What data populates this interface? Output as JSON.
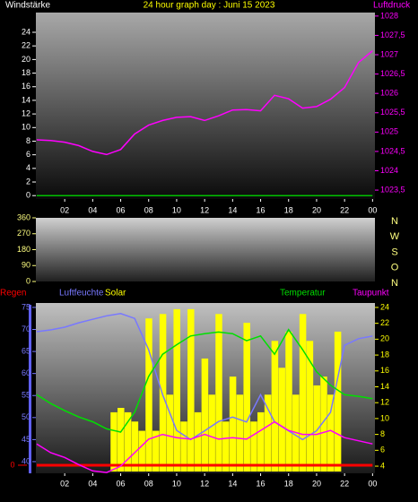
{
  "chart_data": [
    {
      "type": "line",
      "title": "24 hour graph day : Juni 15 2023",
      "y_label": "Windstärke",
      "y2_label": "Luftdruck",
      "x": [
        0,
        1,
        2,
        3,
        4,
        5,
        6,
        7,
        8,
        9,
        10,
        11,
        12,
        13,
        14,
        15,
        16,
        17,
        18,
        19,
        20,
        21,
        22,
        23,
        24
      ],
      "xlim": [
        -0.06,
        24.17
      ],
      "xticks": [
        {
          "value": 2,
          "label": "02"
        },
        {
          "value": 4,
          "label": "04"
        },
        {
          "value": 6,
          "label": "06"
        },
        {
          "value": 8,
          "label": "08"
        },
        10,
        12,
        14,
        16,
        18,
        20,
        22,
        {
          "value": 24,
          "label": "00"
        }
      ],
      "ylim": [
        -0.5,
        26.9
      ],
      "yticks": [
        0,
        2,
        4,
        6,
        8,
        10,
        12,
        14,
        16,
        18,
        20,
        22,
        24
      ],
      "y2lim": [
        1023.27,
        1028.09
      ],
      "y2ticks": [
        {
          "value": 1023.5,
          "label": "1023,5"
        },
        1024,
        {
          "value": 1024.5,
          "label": "1024,5"
        },
        1025,
        {
          "value": 1025.5,
          "label": "1025,5"
        },
        1026,
        {
          "value": 1026.5,
          "label": "1026,5"
        },
        1027,
        {
          "value": 1027.5,
          "label": "1027,5"
        },
        1028
      ],
      "series": [
        {
          "name": "Windstärke",
          "color": "#00c000",
          "values": [
            0,
            0,
            0,
            0,
            0,
            0,
            0,
            0,
            0,
            0,
            0,
            0,
            0,
            0,
            0,
            0,
            0,
            0,
            0,
            0,
            0,
            0,
            0,
            0,
            0
          ]
        },
        {
          "name": "Luftdruck",
          "color": "#ff00ff",
          "axis": "y2",
          "values": [
            1024.8,
            1024.78,
            1024.74,
            1024.65,
            1024.5,
            1024.42,
            1024.55,
            1024.95,
            1025.18,
            1025.3,
            1025.38,
            1025.4,
            1025.3,
            1025.42,
            1025.57,
            1025.58,
            1025.55,
            1025.95,
            1025.86,
            1025.62,
            1025.66,
            1025.85,
            1026.15,
            1026.8,
            1027.1
          ]
        }
      ]
    },
    {
      "type": "line",
      "ylim": [
        0,
        360
      ],
      "yticks": [
        0,
        90,
        180,
        270,
        360
      ],
      "side_labels": [
        "N",
        "W",
        "S",
        "O",
        "N"
      ],
      "series": []
    },
    {
      "type": "line",
      "x": [
        0,
        1,
        2,
        3,
        4,
        5,
        6,
        7,
        8,
        9,
        10,
        11,
        12,
        13,
        14,
        15,
        16,
        17,
        18,
        19,
        20,
        21,
        22,
        23,
        24
      ],
      "xlim": [
        -0.06,
        24.17
      ],
      "xticks": [
        {
          "value": 2,
          "label": "02"
        },
        {
          "value": 4,
          "label": "04"
        },
        {
          "value": 6,
          "label": "06"
        },
        {
          "value": 8,
          "label": "08"
        },
        10,
        12,
        14,
        16,
        18,
        20,
        22,
        {
          "value": 24,
          "label": "00"
        }
      ],
      "ylim": [
        37.35,
        76.0
      ],
      "yticks": [
        40,
        45,
        50,
        55,
        60,
        65,
        70,
        75
      ],
      "y2lim": [
        3.1,
        24.56
      ],
      "y2ticks": [
        4,
        6,
        8,
        10,
        12,
        14,
        16,
        18,
        20,
        22,
        24
      ],
      "y3lim": [
        -0.5,
        10
      ],
      "y3ticks": [
        0
      ],
      "series": [
        {
          "name": "Regen",
          "color": "#ff0000",
          "axis": "y3",
          "values": [
            0,
            0,
            0,
            0,
            0,
            0,
            0,
            0,
            0,
            0,
            0,
            0,
            0,
            0,
            0,
            0,
            0,
            0,
            0,
            0,
            0,
            0,
            0,
            0,
            0
          ]
        },
        {
          "name": "Luftfeuchte",
          "color": "#7878ff",
          "values": [
            69.5,
            69.9,
            70.5,
            71.5,
            72.3,
            73.1,
            73.6,
            72.5,
            65.4,
            55.2,
            47.1,
            45,
            47,
            49.1,
            50.1,
            49,
            55.2,
            49,
            47,
            45,
            47,
            51.2,
            66.4,
            67.9,
            68.5
          ]
        },
        {
          "name": "Solar",
          "color": "#ffff00",
          "kind": "bar",
          "x": [
            5.5,
            6,
            6.5,
            7,
            7.5,
            8,
            8.5,
            9,
            9.5,
            10,
            10.5,
            11,
            11.5,
            12,
            12.5,
            13,
            13.5,
            14,
            14.5,
            15,
            15.5,
            16,
            16.5,
            17,
            17.5,
            18,
            18.5,
            19,
            19.5,
            20,
            20.5,
            21,
            21.5
          ],
          "values": [
            51.2,
            52.2,
            51.2,
            49.1,
            47,
            72.5,
            47,
            73.5,
            55.2,
            74.6,
            49.1,
            74.6,
            51.2,
            63.4,
            55.2,
            73.5,
            49.1,
            59.3,
            55.2,
            71.5,
            49.1,
            51.2,
            55.2,
            67.4,
            61.3,
            69.5,
            55.2,
            73.5,
            67.4,
            57.3,
            59.3,
            55.2,
            69.5
          ]
        },
        {
          "name": "Temperatur",
          "color": "#00e000",
          "axis": "y2",
          "values": [
            13.0,
            11.9,
            11.0,
            10.2,
            9.6,
            8.7,
            8.3,
            10.8,
            15.3,
            18.1,
            19.3,
            20.4,
            20.7,
            20.9,
            20.7,
            19.8,
            20.4,
            18.1,
            21.2,
            18.7,
            15.9,
            14.2,
            13.0,
            12.8,
            12.5
          ]
        },
        {
          "name": "Taupunkt",
          "color": "#ff00ff",
          "axis": "y2",
          "values": [
            6.8,
            5.7,
            5.1,
            4.2,
            3.4,
            3.2,
            4.0,
            5.7,
            7.4,
            8.0,
            7.6,
            7.4,
            8.0,
            7.4,
            7.6,
            7.4,
            8.5,
            9.6,
            8.5,
            8.0,
            8.0,
            8.5,
            7.6,
            7.2,
            6.8
          ]
        }
      ]
    }
  ]
}
